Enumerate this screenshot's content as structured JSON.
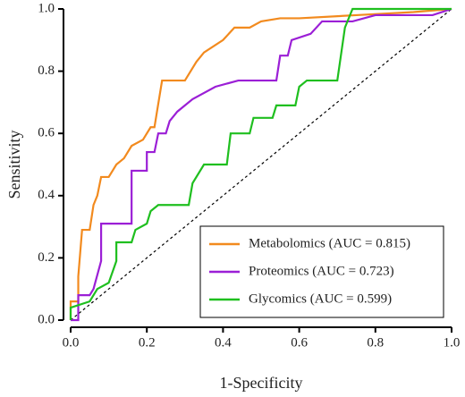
{
  "chart_data": {
    "type": "line",
    "xlabel": "1-Specificity",
    "ylabel": "Sensitivity",
    "xlim": [
      0,
      1
    ],
    "ylim": [
      0,
      1
    ],
    "xticks": [
      {
        "value": 0,
        "label": "0.0"
      },
      0.2,
      0.4,
      0.6,
      0.8,
      {
        "value": 1,
        "label": "1.0"
      }
    ],
    "yticks": [
      {
        "value": 0,
        "label": "0.0"
      },
      0.2,
      0.4,
      0.6,
      0.8,
      {
        "value": 1,
        "label": "1.0"
      }
    ],
    "legend": "lower right",
    "series": [
      {
        "name": "Metabolomics (AUC = 0.815)",
        "color": "#f28a1e",
        "x": [
          0,
          0,
          0.02,
          0.02,
          0.03,
          0.05,
          0.06,
          0.07,
          0.08,
          0.1,
          0.12,
          0.14,
          0.16,
          0.19,
          0.21,
          0.22,
          0.24,
          0.3,
          0.33,
          0.35,
          0.4,
          0.43,
          0.47,
          0.5,
          0.55,
          0.6,
          0.75,
          0.9,
          1
        ],
        "values": [
          0,
          0.06,
          0.06,
          0.14,
          0.29,
          0.29,
          0.37,
          0.4,
          0.46,
          0.46,
          0.5,
          0.52,
          0.56,
          0.58,
          0.62,
          0.62,
          0.77,
          0.77,
          0.83,
          0.86,
          0.9,
          0.94,
          0.94,
          0.96,
          0.97,
          0.97,
          0.98,
          0.99,
          1
        ]
      },
      {
        "name": "Proteomics (AUC = 0.723)",
        "color": "#9b1fd6",
        "x": [
          0,
          0.02,
          0.02,
          0.05,
          0.06,
          0.08,
          0.08,
          0.16,
          0.16,
          0.2,
          0.2,
          0.22,
          0.23,
          0.25,
          0.26,
          0.28,
          0.32,
          0.38,
          0.44,
          0.54,
          0.55,
          0.57,
          0.58,
          0.63,
          0.66,
          0.74,
          0.8,
          0.95,
          1
        ],
        "values": [
          0,
          0,
          0.08,
          0.08,
          0.1,
          0.19,
          0.31,
          0.31,
          0.48,
          0.48,
          0.54,
          0.54,
          0.6,
          0.6,
          0.64,
          0.67,
          0.71,
          0.75,
          0.77,
          0.77,
          0.85,
          0.85,
          0.9,
          0.92,
          0.96,
          0.96,
          0.98,
          0.98,
          1
        ]
      },
      {
        "name": "Glycomics (AUC = 0.599)",
        "color": "#1fbf1f",
        "x": [
          0,
          0,
          0.05,
          0.07,
          0.1,
          0.12,
          0.12,
          0.16,
          0.17,
          0.2,
          0.21,
          0.23,
          0.31,
          0.32,
          0.35,
          0.41,
          0.42,
          0.47,
          0.48,
          0.53,
          0.54,
          0.59,
          0.6,
          0.62,
          0.7,
          0.72,
          0.74,
          1
        ],
        "values": [
          0,
          0.04,
          0.06,
          0.1,
          0.12,
          0.19,
          0.25,
          0.25,
          0.29,
          0.31,
          0.35,
          0.37,
          0.37,
          0.44,
          0.5,
          0.5,
          0.6,
          0.6,
          0.65,
          0.65,
          0.69,
          0.69,
          0.75,
          0.77,
          0.77,
          0.94,
          1,
          1
        ]
      }
    ]
  }
}
